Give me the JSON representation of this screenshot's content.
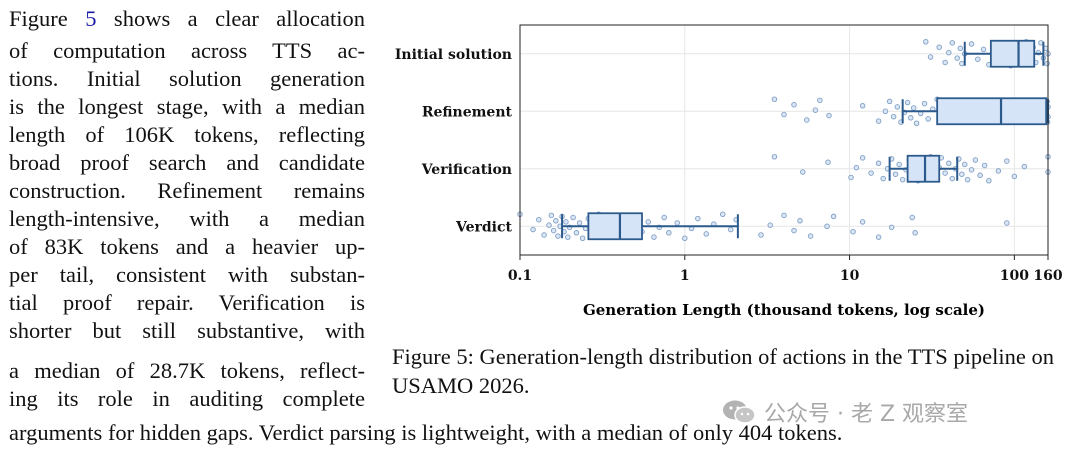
{
  "paragraph": {
    "lines": [
      {
        "pre": "Figure ",
        "ref": "5",
        "post": " shows a clear allocation"
      },
      {
        "text": "of computation across TTS ac-"
      },
      {
        "text": "tions. Initial solution generation"
      },
      {
        "text": "is the longest stage, with a median"
      },
      {
        "text": "length of 106K tokens, reflecting"
      },
      {
        "text": "broad proof search and candidate"
      },
      {
        "text": "construction. Refinement remains"
      },
      {
        "text": "length-intensive, with a median"
      },
      {
        "text": "of 83K tokens and a heavier up-"
      },
      {
        "text": "per tail, consistent with substan-"
      },
      {
        "text": "tial proof repair. Verification is"
      },
      {
        "text": "shorter but still substantive, with"
      },
      {
        "text": "a median of 28.7K tokens, reflect-"
      },
      {
        "text": "ing its role in auditing complete"
      }
    ],
    "last_line": "arguments for hidden gaps. Verdict parsing is lightweight, with a median of only 404 tokens."
  },
  "caption": "Figure 5: Generation-length distribution of actions in the TTS pipeline on USAMO 2026.",
  "watermark": "公众号 · 老 Z 观察室",
  "chart_data": {
    "type": "boxplot",
    "orientation": "horizontal",
    "xscale": "log",
    "xlim": [
      0.1,
      160
    ],
    "xlabel": "Generation Length (thousand tokens, log scale)",
    "xticks": [
      0.1,
      1,
      10,
      100,
      160
    ],
    "xtick_labels": [
      "0.1",
      "1",
      "10",
      "100",
      "160"
    ],
    "grid": true,
    "box_color": "#d6e4f7",
    "edge_color": "#2c5a8c",
    "point_color": "#7f9fc6",
    "categories": [
      "Initial solution",
      "Refinement",
      "Verification",
      "Verdict"
    ],
    "boxes": [
      {
        "name": "Initial solution",
        "whislo": 50,
        "q1": 72,
        "med": 106,
        "q3": 132,
        "whishi": 150
      },
      {
        "name": "Refinement",
        "whislo": 21,
        "q1": 34,
        "med": 83,
        "q3": 156,
        "whishi": 160
      },
      {
        "name": "Verification",
        "whislo": 17.5,
        "q1": 22.5,
        "med": 28.7,
        "q3": 35,
        "whishi": 45
      },
      {
        "name": "Verdict",
        "whislo": 0.18,
        "q1": 0.26,
        "med": 0.404,
        "q3": 0.55,
        "whishi": 2.1
      }
    ],
    "points": [
      {
        "name": "Initial solution",
        "values": [
          29,
          31,
          35,
          38,
          40,
          42,
          45,
          47,
          48,
          50,
          55,
          60,
          65,
          70,
          75,
          80,
          85,
          90,
          95,
          100,
          104,
          108,
          112,
          118,
          125,
          130,
          135,
          140,
          145,
          150,
          155,
          158,
          160
        ]
      },
      {
        "name": "Refinement",
        "values": [
          3.5,
          4,
          4.6,
          5.5,
          6.2,
          6.6,
          7.5,
          12,
          15,
          16.5,
          17.5,
          18.5,
          19.5,
          20.5,
          21.5,
          22.5,
          23.5,
          24.5,
          25.5,
          27,
          28.5,
          30,
          32,
          34,
          40,
          50,
          60,
          80,
          100,
          120,
          140,
          150,
          155,
          158,
          160,
          160,
          159
        ]
      },
      {
        "name": "Verification",
        "values": [
          3.5,
          5.2,
          7.4,
          10.2,
          11,
          12,
          13.5,
          15,
          16,
          17,
          18,
          19,
          20,
          21,
          22,
          23,
          24,
          25,
          26,
          27,
          28,
          29,
          30,
          31,
          32,
          33,
          34,
          35,
          36,
          38,
          40,
          42,
          44,
          46,
          48,
          50,
          52,
          55,
          58,
          62,
          66,
          70,
          80,
          90,
          100,
          115,
          160,
          160
        ]
      },
      {
        "name": "Verdict",
        "values": [
          0.1,
          0.12,
          0.13,
          0.14,
          0.15,
          0.155,
          0.16,
          0.165,
          0.17,
          0.175,
          0.18,
          0.185,
          0.19,
          0.195,
          0.2,
          0.21,
          0.22,
          0.23,
          0.24,
          0.25,
          0.26,
          0.27,
          0.28,
          0.3,
          0.32,
          0.34,
          0.36,
          0.38,
          0.4,
          0.42,
          0.45,
          0.48,
          0.5,
          0.52,
          0.55,
          0.6,
          0.65,
          0.7,
          0.75,
          0.8,
          0.9,
          1.0,
          1.1,
          1.2,
          1.35,
          1.5,
          1.7,
          1.9,
          2.05,
          2.9,
          3.3,
          4.0,
          4.6,
          5.0,
          5.8,
          7.3,
          8.0,
          10.5,
          12,
          15,
          18,
          24,
          25,
          90
        ]
      }
    ]
  }
}
